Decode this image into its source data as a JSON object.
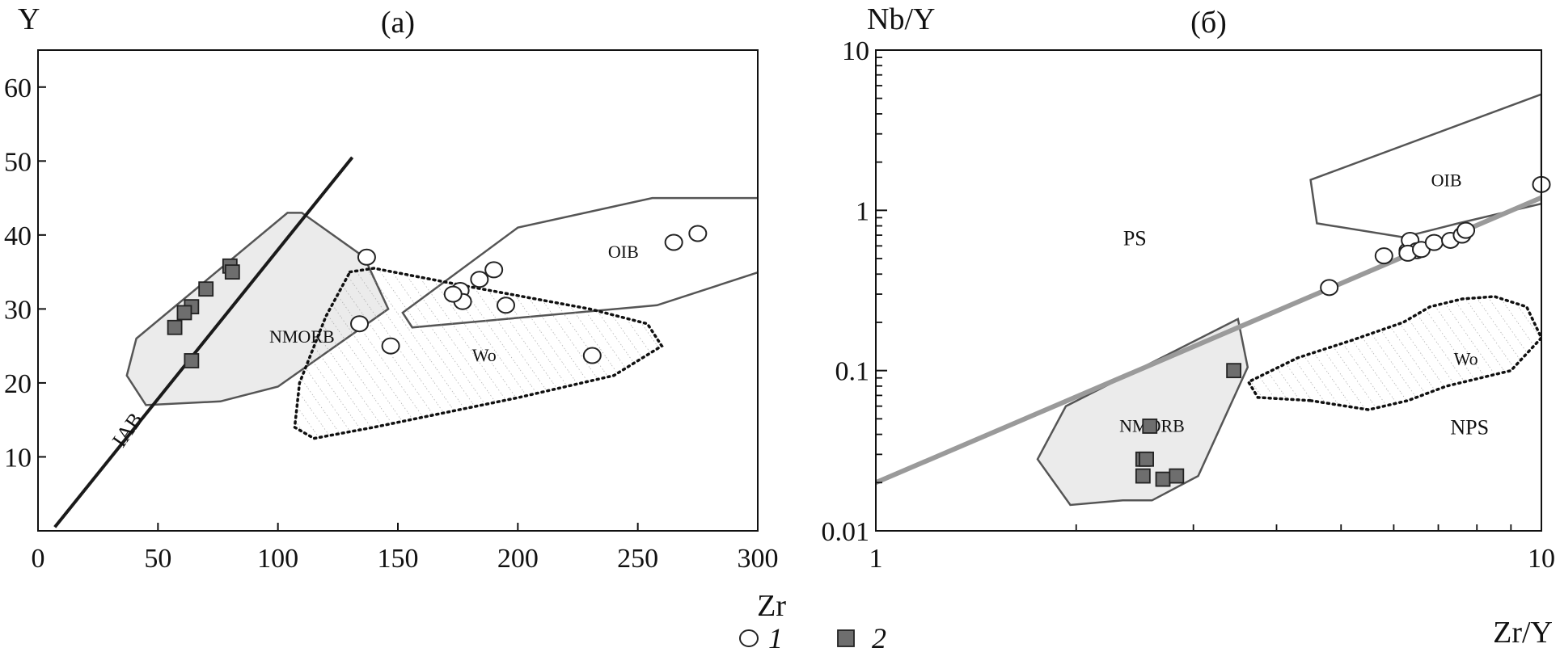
{
  "legend": [
    {
      "marker": "circle",
      "label": "1"
    },
    {
      "marker": "square",
      "label": "2"
    }
  ],
  "colors": {
    "field_fill": "#ebebeb",
    "field_line": "#555555",
    "square_fill": "#6e6e6e",
    "discrim_line_b": "#9a9a9a",
    "iab_line": "#1a1a1a"
  },
  "chart_data": [
    {
      "type": "scatter",
      "title": "(a)",
      "xlabel": "Zr",
      "ylabel": "Y",
      "xlim": [
        0,
        300
      ],
      "ylim": [
        0,
        65
      ],
      "x_ticks": [
        0,
        50,
        100,
        150,
        200,
        250,
        300
      ],
      "y_ticks": [
        10,
        20,
        30,
        40,
        50,
        60
      ],
      "x_tick_labels": [
        "0",
        "50",
        "100",
        "150",
        "200",
        "250",
        "300"
      ],
      "y_tick_labels": [
        "10",
        "20",
        "30",
        "40",
        "50",
        "60"
      ],
      "fields": [
        {
          "name": "NMORB",
          "style": "filled",
          "polygon": [
            [
              41,
              26
            ],
            [
              37,
              21
            ],
            [
              45,
              17
            ],
            [
              76,
              17.5
            ],
            [
              100,
              19.5
            ],
            [
              146,
              30
            ],
            [
              136,
              37
            ],
            [
              110,
              43
            ],
            [
              104,
              43
            ]
          ],
          "label_at": [
            110,
            26
          ]
        },
        {
          "name": "OIB",
          "style": "outline",
          "polygon": [
            [
              152,
              29.5
            ],
            [
              200,
              41
            ],
            [
              256,
              45
            ],
            [
              310,
              45
            ],
            [
              310,
              36
            ],
            [
              258,
              30.5
            ],
            [
              156,
              27.5
            ]
          ],
          "label_at": [
            244,
            37.5
          ]
        },
        {
          "name": "Wo",
          "style": "dotted-hatched",
          "polygon": [
            [
              130,
              35
            ],
            [
              140,
              35.5
            ],
            [
              180,
              33
            ],
            [
              230,
              30
            ],
            [
              254,
              28
            ],
            [
              260,
              25
            ],
            [
              240,
              21
            ],
            [
              200,
              18
            ],
            [
              170,
              16
            ],
            [
              140,
              14
            ],
            [
              115,
              12.5
            ],
            [
              107,
              14
            ],
            [
              109,
              20
            ],
            [
              120,
              29
            ]
          ],
          "label_at": [
            186,
            23.5
          ]
        }
      ],
      "lines": [
        {
          "name": "IAB",
          "x": [
            7,
            131
          ],
          "y": [
            0.5,
            50.5
          ],
          "label_at": [
            38,
            13.5
          ],
          "label_angle": -55
        }
      ],
      "series": [
        {
          "name": "1",
          "marker": "circle",
          "points": [
            [
              137,
              37
            ],
            [
              134,
              28
            ],
            [
              147,
              25
            ],
            [
              176,
              32.5
            ],
            [
              177,
              31
            ],
            [
              173,
              32
            ],
            [
              184,
              34
            ],
            [
              190,
              35.3
            ],
            [
              195,
              30.5
            ],
            [
              231,
              23.7
            ],
            [
              265,
              39
            ],
            [
              275,
              40.2
            ]
          ]
        },
        {
          "name": "2",
          "marker": "square",
          "points": [
            [
              80,
              35.8
            ],
            [
              81,
              35
            ],
            [
              70,
              32.7
            ],
            [
              64,
              30.3
            ],
            [
              61,
              29.5
            ],
            [
              57,
              27.5
            ],
            [
              64,
              23
            ]
          ]
        }
      ]
    },
    {
      "type": "scatter",
      "title": "(б)",
      "xlabel": "Zr/Y",
      "ylabel": "Nb/Y",
      "xscale": "log",
      "yscale": "log",
      "xlim": [
        1,
        10
      ],
      "ylim": [
        0.01,
        10
      ],
      "x_ticks": [
        1,
        10
      ],
      "y_ticks": [
        0.01,
        0.1,
        1,
        10
      ],
      "x_tick_labels": [
        "1",
        "10"
      ],
      "y_tick_labels": [
        "0.01",
        "0.1",
        "1",
        "10"
      ],
      "fields": [
        {
          "name": "NMORB",
          "style": "filled",
          "polygon": [
            [
              1.75,
              0.028
            ],
            [
              1.93,
              0.06
            ],
            [
              3.5,
              0.21
            ],
            [
              3.62,
              0.105
            ],
            [
              3.05,
              0.022
            ],
            [
              2.6,
              0.0155
            ],
            [
              2.35,
              0.0155
            ],
            [
              1.96,
              0.0145
            ]
          ],
          "label_at": [
            2.6,
            0.044
          ]
        },
        {
          "name": "OIB",
          "style": "outline",
          "polygon": [
            [
              4.5,
              1.55
            ],
            [
              10,
              5.3
            ],
            [
              10,
              1.1
            ],
            [
              7.5,
              0.83
            ],
            [
              6.2,
              0.68
            ],
            [
              4.6,
              0.83
            ]
          ],
          "label_at": [
            7.2,
            1.5
          ]
        },
        {
          "name": "Wo",
          "style": "dotted-hatched",
          "polygon": [
            [
              4.5,
              0.065
            ],
            [
              5.5,
              0.057
            ],
            [
              6.3,
              0.065
            ],
            [
              7.2,
              0.08
            ],
            [
              9,
              0.1
            ],
            [
              10,
              0.16
            ],
            [
              9.5,
              0.25
            ],
            [
              8.5,
              0.29
            ],
            [
              7.6,
              0.28
            ],
            [
              6.8,
              0.25
            ],
            [
              6.2,
              0.2
            ],
            [
              5.2,
              0.155
            ],
            [
              4.3,
              0.12
            ],
            [
              3.63,
              0.085
            ],
            [
              3.75,
              0.068
            ]
          ],
          "label_at": [
            7.7,
            0.115
          ]
        }
      ],
      "lines": [
        {
          "name": "PS/NPS boundary",
          "x": [
            1,
            10
          ],
          "y": [
            0.02,
            1.2
          ]
        }
      ],
      "region_labels": [
        {
          "text": "PS",
          "at": [
            2.45,
            0.65
          ]
        },
        {
          "text": "NPS",
          "at": [
            7.8,
            0.043
          ]
        }
      ],
      "series": [
        {
          "name": "1",
          "marker": "circle",
          "points": [
            [
              4.8,
              0.33
            ],
            [
              5.8,
              0.52
            ],
            [
              6.3,
              0.56
            ],
            [
              6.35,
              0.65
            ],
            [
              6.5,
              0.56
            ],
            [
              6.3,
              0.54
            ],
            [
              6.6,
              0.57
            ],
            [
              6.9,
              0.63
            ],
            [
              7.3,
              0.65
            ],
            [
              7.6,
              0.7
            ],
            [
              7.7,
              0.75
            ],
            [
              10,
              1.45
            ]
          ]
        },
        {
          "name": "2",
          "marker": "square",
          "points": [
            [
              3.45,
              0.1
            ],
            [
              2.58,
              0.045
            ],
            [
              2.52,
              0.028
            ],
            [
              2.55,
              0.028
            ],
            [
              2.52,
              0.022
            ],
            [
              2.7,
              0.021
            ],
            [
              2.83,
              0.022
            ]
          ]
        }
      ]
    }
  ]
}
